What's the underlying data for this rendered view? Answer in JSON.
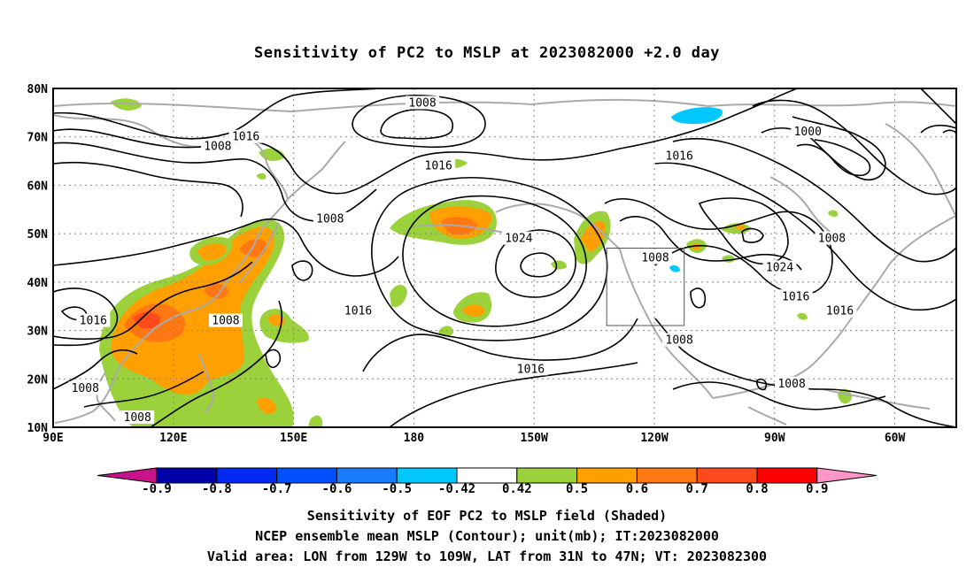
{
  "title": "Sensitivity of PC2 to MSLP at 2023082000 +2.0 day",
  "captions": [
    "Sensitivity of EOF PC2 to MSLP field (Shaded)",
    "NCEP ensemble mean MSLP (Contour); unit(mb); IT:2023082000",
    "Valid area: LON from 129W to 109W, LAT from 31N to 47N; VT: 2023082300"
  ],
  "lat_labels": [
    "80N",
    "70N",
    "60N",
    "50N",
    "40N",
    "30N",
    "20N",
    "10N"
  ],
  "lon_labels": [
    "90E",
    "120E",
    "150E",
    "180",
    "150W",
    "120W",
    "90W",
    "60W"
  ],
  "contour_labels": [
    {
      "text": "1008",
      "lat": 77,
      "lon": -178
    },
    {
      "text": "1016",
      "lat": 70,
      "lon": 138
    },
    {
      "text": "1008",
      "lat": 68,
      "lon": 131
    },
    {
      "text": "1016",
      "lat": 64,
      "lon": -174
    },
    {
      "text": "1000",
      "lat": 71,
      "lon": -82
    },
    {
      "text": "1016",
      "lat": 66,
      "lon": -114
    },
    {
      "text": "1024",
      "lat": 49,
      "lon": -154
    },
    {
      "text": "1008",
      "lat": 53,
      "lon": 159
    },
    {
      "text": "1008",
      "lat": 45,
      "lon": -120
    },
    {
      "text": "1008",
      "lat": 49,
      "lon": -76
    },
    {
      "text": "1024",
      "lat": 43,
      "lon": -89
    },
    {
      "text": "1016",
      "lat": 37,
      "lon": -85
    },
    {
      "text": "1016",
      "lat": 34,
      "lon": 166
    },
    {
      "text": "1016",
      "lat": 32,
      "lon": 100
    },
    {
      "text": "1008",
      "lat": 32,
      "lon": 133
    },
    {
      "text": "1016",
      "lat": 34,
      "lon": -74
    },
    {
      "text": "1008",
      "lat": 28,
      "lon": -114
    },
    {
      "text": "1016",
      "lat": 22,
      "lon": -151
    },
    {
      "text": "1008",
      "lat": 19,
      "lon": -86
    },
    {
      "text": "1008",
      "lat": 18,
      "lon": 98
    },
    {
      "text": "1008",
      "lat": 12,
      "lon": 111
    }
  ],
  "colorbar": {
    "labels": [
      "-0.9",
      "-0.8",
      "-0.7",
      "-0.6",
      "-0.5",
      "-0.42",
      "0.42",
      "0.5",
      "0.6",
      "0.7",
      "0.8",
      "0.9"
    ],
    "colors": [
      "#0000a8",
      "#0028f0",
      "#0050ff",
      "#1a7cff",
      "#00c8ff",
      "#ffffff",
      "#9bd13a",
      "#ffa000",
      "#ff7814",
      "#ff4a1e",
      "#ff0000"
    ],
    "low_color": "#c8148c",
    "high_color": "#ff96c8"
  },
  "colors": {
    "contour": "#000000",
    "coast": "#aaaaaa",
    "grid": "#888888"
  },
  "valid_box": {
    "lon_west": -129,
    "lon_east": -109,
    "lat_south": 31,
    "lat_north": 47
  }
}
